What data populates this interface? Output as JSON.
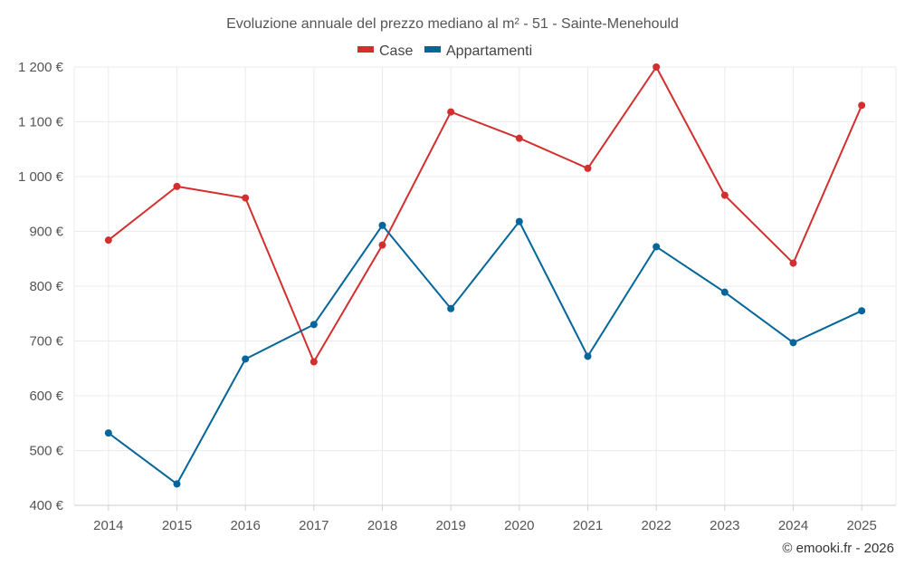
{
  "chart_data": {
    "type": "line",
    "title": "Evoluzione annuale del prezzo mediano al m² - 51 - Sainte-Menehould",
    "categories": [
      "2014",
      "2015",
      "2016",
      "2017",
      "2018",
      "2019",
      "2020",
      "2021",
      "2022",
      "2023",
      "2024",
      "2025"
    ],
    "series": [
      {
        "name": "Case",
        "color": "#d32f2f",
        "values": [
          884,
          982,
          961,
          662,
          875,
          1118,
          1070,
          1015,
          1200,
          966,
          842,
          1130
        ]
      },
      {
        "name": "Appartamenti",
        "color": "#03669a",
        "values": [
          532,
          439,
          667,
          730,
          911,
          759,
          918,
          672,
          872,
          789,
          697,
          755
        ]
      }
    ],
    "ylim": [
      400,
      1200
    ],
    "yticks": [
      400,
      500,
      600,
      700,
      800,
      900,
      1000,
      1100,
      1200
    ],
    "ytick_labels": [
      "400 €",
      "500 €",
      "600 €",
      "700 €",
      "800 €",
      "900 €",
      "1 000 €",
      "1 100 €",
      "1 200 €"
    ],
    "legend_position": "top-center",
    "grid": true,
    "credit": "© emooki.fr - 2026"
  }
}
